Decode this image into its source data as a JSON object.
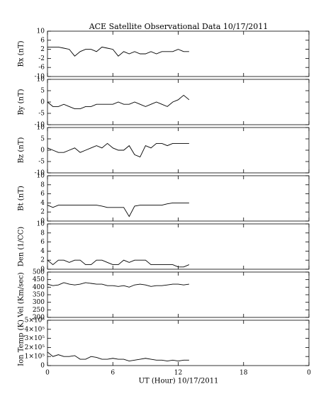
{
  "title": "ACE Satellite Observational Data   10/17/2011",
  "xlabel": "UT (Hour)   10/17/2011",
  "chart_data": [
    {
      "type": "line",
      "ylabel": "Bx (nT)",
      "x": [
        0,
        0.5,
        1,
        1.5,
        2,
        2.5,
        3,
        3.5,
        4,
        4.5,
        5,
        5.5,
        6,
        6.5,
        7,
        7.5,
        8,
        8.5,
        9,
        9.5,
        10,
        10.5,
        11,
        11.5,
        12,
        12.5,
        13
      ],
      "values": [
        3,
        3,
        3,
        2.5,
        2,
        -1,
        1,
        2,
        2,
        1,
        3,
        2.5,
        2,
        -1,
        1,
        0,
        1,
        0,
        0,
        1,
        0,
        1,
        1,
        1,
        2,
        1,
        1
      ],
      "color": "#000000",
      "xlim": [
        0,
        24
      ],
      "xticks": [
        0,
        6,
        12,
        18,
        {
          "value": 24,
          "label": "0"
        }
      ],
      "ylim": [
        -10,
        10
      ],
      "yticks": [
        -10,
        -6,
        -2,
        2,
        6,
        10
      ]
    },
    {
      "type": "line",
      "ylabel": "By (nT)",
      "x": [
        0,
        0.5,
        1,
        1.5,
        2,
        2.5,
        3,
        3.5,
        4,
        4.5,
        5,
        5.5,
        6,
        6.5,
        7,
        7.5,
        8,
        8.5,
        9,
        9.5,
        10,
        10.5,
        11,
        11.5,
        12,
        12.5,
        13
      ],
      "values": [
        0,
        -2,
        -2,
        -1,
        -2,
        -3,
        -3,
        -2,
        -2,
        -1,
        -1,
        -1,
        -1,
        0,
        -1,
        -1,
        0,
        -1,
        -2,
        -1,
        0,
        -1,
        -2,
        0,
        1,
        3,
        1
      ],
      "color": "#000000",
      "xlim": [
        0,
        24
      ],
      "xticks": [
        0,
        6,
        12,
        18,
        {
          "value": 24,
          "label": "0"
        }
      ],
      "ylim": [
        -10,
        10
      ],
      "yticks": [
        -10,
        -5,
        0,
        5,
        10
      ]
    },
    {
      "type": "line",
      "ylabel": "Bz (nT)",
      "x": [
        0,
        0.5,
        1,
        1.5,
        2,
        2.5,
        3,
        3.5,
        4,
        4.5,
        5,
        5.5,
        6,
        6.5,
        7,
        7.5,
        8,
        8.5,
        9,
        9.5,
        10,
        10.5,
        11,
        11.5,
        12,
        12.5,
        13
      ],
      "values": [
        1,
        0,
        -1,
        -1,
        0,
        1,
        -1,
        0,
        1,
        2,
        1,
        3,
        1,
        0,
        0,
        2,
        -2,
        -3,
        2,
        1,
        3,
        3,
        2,
        3,
        3,
        3,
        3
      ],
      "color": "#000000",
      "xlim": [
        0,
        24
      ],
      "xticks": [
        0,
        6,
        12,
        18,
        {
          "value": 24,
          "label": "0"
        }
      ],
      "ylim": [
        -10,
        10
      ],
      "yticks": [
        -10,
        -5,
        0,
        5,
        10
      ]
    },
    {
      "type": "line",
      "ylabel": "Bt (nT)",
      "x": [
        0,
        0.5,
        1,
        1.5,
        2,
        2.5,
        3,
        3.5,
        4,
        4.5,
        5,
        5.5,
        6,
        6.5,
        7,
        7.5,
        8,
        8.5,
        9,
        9.5,
        10,
        10.5,
        11,
        11.5,
        12,
        12.5,
        13
      ],
      "values": [
        3.5,
        3,
        3.5,
        3.5,
        3.5,
        3.5,
        3.5,
        3.5,
        3.5,
        3.5,
        3.3,
        3,
        3,
        3,
        3,
        1,
        3.3,
        3.5,
        3.5,
        3.5,
        3.5,
        3.5,
        3.8,
        4,
        4,
        4,
        4
      ],
      "color": "#000000",
      "xlim": [
        0,
        24
      ],
      "xticks": [
        0,
        6,
        12,
        18,
        {
          "value": 24,
          "label": "0"
        }
      ],
      "ylim": [
        0,
        10
      ],
      "yticks": [
        0,
        2,
        4,
        6,
        8,
        10
      ]
    },
    {
      "type": "line",
      "ylabel": "Den (1/CC)",
      "x": [
        0,
        0.5,
        1,
        1.5,
        2,
        2.5,
        3,
        3.5,
        4,
        4.5,
        5,
        5.5,
        6,
        6.5,
        7,
        7.5,
        8,
        8.5,
        9,
        9.5,
        10,
        10.5,
        11,
        11.5,
        12,
        12.5,
        13
      ],
      "values": [
        2,
        1,
        2,
        2,
        1.5,
        2,
        2,
        1,
        1,
        2,
        2,
        1.5,
        1,
        1,
        2,
        1.5,
        2,
        2,
        2,
        1,
        1,
        1,
        1,
        1,
        0.5,
        0.5,
        1
      ],
      "color": "#000000",
      "xlim": [
        0,
        24
      ],
      "xticks": [
        0,
        6,
        12,
        18,
        {
          "value": 24,
          "label": "0"
        }
      ],
      "ylim": [
        0,
        10
      ],
      "yticks": [
        0,
        2,
        4,
        6,
        8,
        10
      ]
    },
    {
      "type": "line",
      "ylabel": "Vel (Km/sec)",
      "x": [
        0,
        0.5,
        1,
        1.5,
        2,
        2.5,
        3,
        3.5,
        4,
        4.5,
        5,
        5.5,
        6,
        6.5,
        7,
        7.5,
        8,
        8.5,
        9,
        9.5,
        10,
        10.5,
        11,
        11.5,
        12,
        12.5,
        13
      ],
      "values": [
        420,
        410,
        415,
        430,
        420,
        415,
        420,
        430,
        425,
        420,
        420,
        410,
        410,
        405,
        410,
        400,
        415,
        420,
        415,
        405,
        410,
        410,
        415,
        420,
        420,
        415,
        420
      ],
      "color": "#000000",
      "xlim": [
        0,
        24
      ],
      "xticks": [
        0,
        6,
        12,
        18,
        {
          "value": 24,
          "label": "0"
        }
      ],
      "ylim": [
        200,
        500
      ],
      "yticks": [
        200,
        250,
        300,
        350,
        400,
        450,
        500
      ]
    },
    {
      "type": "line",
      "ylabel": "Ion Temp (K)",
      "x": [
        0,
        0.5,
        1,
        1.5,
        2,
        2.5,
        3,
        3.5,
        4,
        4.5,
        5,
        5.5,
        6,
        6.5,
        7,
        7.5,
        8,
        8.5,
        9,
        9.5,
        10,
        10.5,
        11,
        11.5,
        12,
        12.5,
        13
      ],
      "values": [
        150000,
        100000,
        120000,
        100000,
        100000,
        110000,
        70000,
        70000,
        100000,
        90000,
        70000,
        70000,
        80000,
        70000,
        70000,
        50000,
        60000,
        70000,
        80000,
        70000,
        60000,
        60000,
        50000,
        60000,
        50000,
        60000,
        60000
      ],
      "color": "#000000",
      "xlim": [
        0,
        24
      ],
      "xticks": [
        0,
        6,
        12,
        18,
        {
          "value": 24,
          "label": "0"
        }
      ],
      "ylim": [
        0,
        500000
      ],
      "yticks": [
        0,
        {
          "value": 100000,
          "label": "1×10⁵"
        },
        {
          "value": 200000,
          "label": "2×10⁵"
        },
        {
          "value": 300000,
          "label": "3×10⁵"
        },
        {
          "value": 400000,
          "label": "4×10⁵"
        },
        {
          "value": 500000,
          "label": "5×10⁵"
        }
      ]
    }
  ]
}
